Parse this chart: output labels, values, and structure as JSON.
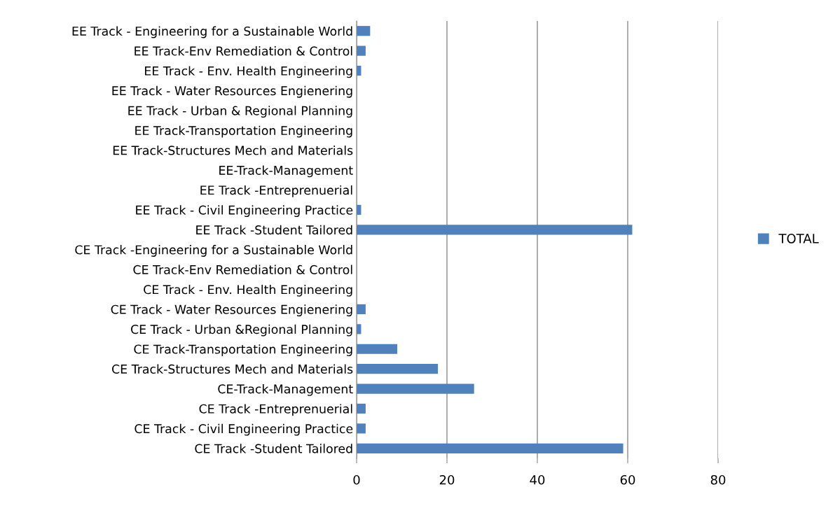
{
  "chart_data": {
    "type": "bar",
    "orientation": "horizontal",
    "categories": [
      "EE Track - Engineering for a Sustainable World",
      "EE Track-Env Remediation & Control",
      "EE Track - Env. Health Engineering",
      "EE Track - Water Resources Engienering",
      "EE Track - Urban & Regional Planning",
      "EE Track-Transportation Engineering",
      "EE Track-Structures Mech and Materials",
      "EE-Track-Management",
      "EE Track -Entreprenuerial",
      "EE Track - Civil Engineering Practice",
      "EE Track -Student Tailored",
      "CE Track -Engineering for a Sustainable World",
      "CE Track-Env Remediation & Control",
      "CE Track - Env. Health Engineering",
      "CE Track - Water Resources Engienering",
      "CE Track - Urban &Regional Planning",
      "CE Track-Transportation Engineering",
      "CE Track-Structures Mech and Materials",
      "CE-Track-Management",
      "CE Track -Entreprenuerial",
      "CE Track - Civil Engineering Practice",
      "CE Track -Student Tailored"
    ],
    "series": [
      {
        "name": "TOTAL",
        "color": "#4f81bd",
        "values": [
          3,
          2,
          1,
          0,
          0,
          0,
          0,
          0,
          0,
          1,
          61,
          0,
          0,
          0,
          2,
          1,
          9,
          18,
          26,
          2,
          2,
          59
        ]
      }
    ],
    "xlim": [
      0,
      80
    ],
    "xticks": [
      0,
      20,
      40,
      60,
      80
    ],
    "grid": "x",
    "legend": "right"
  }
}
